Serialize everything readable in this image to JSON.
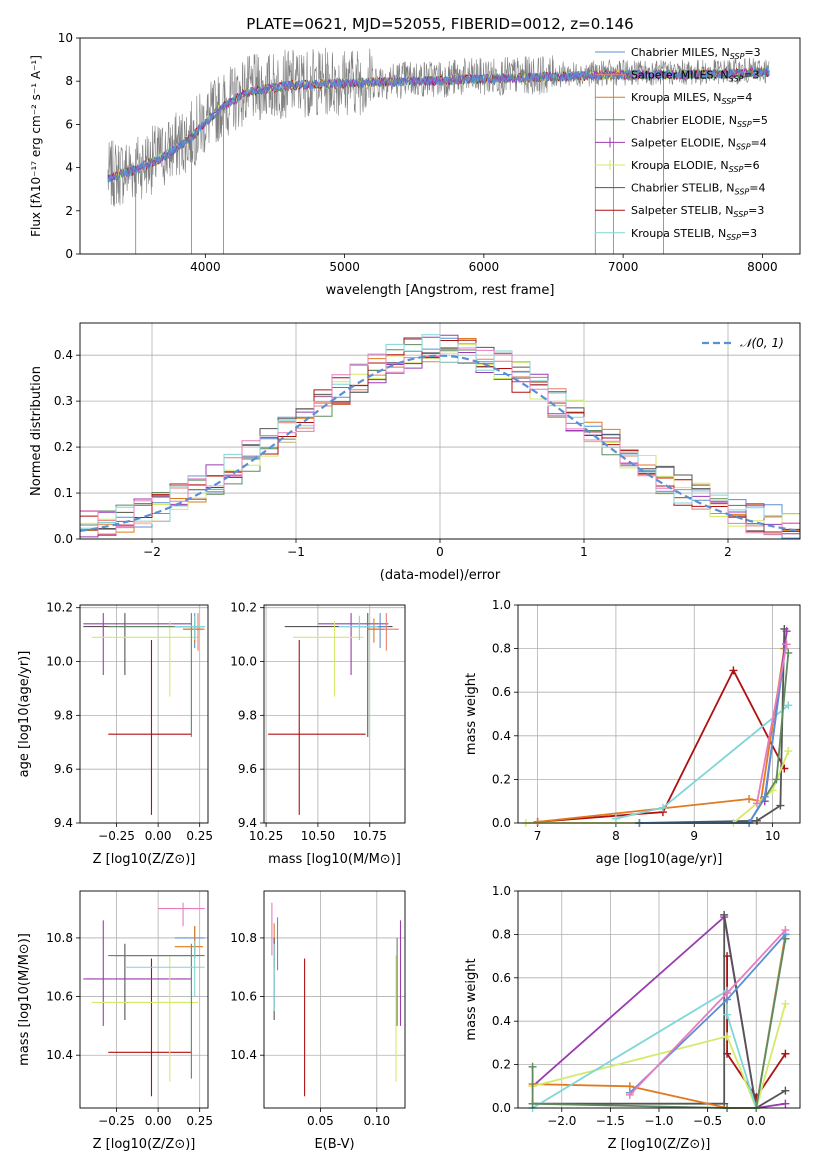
{
  "figure": {
    "title": "PLATE=0621, MJD=52055, FIBERID=0012, z=0.146"
  },
  "colors": {
    "c_miles": "#5b8fd4",
    "s_miles": "#e87f6d",
    "k_miles": "#e07a1f",
    "c_elodie": "#5e8a5e",
    "s_elodie": "#9b3bb0",
    "k_elodie": "#d4ea6a",
    "c_stelib": "#555555",
    "s_stelib": "#b01010",
    "k_stelib": "#7fd6d9",
    "pink": "#e87cbe",
    "gray": "#808080",
    "normal": "#5b8fd4"
  },
  "chart_data": [
    {
      "id": "spectrum",
      "type": "line",
      "xlabel": "wavelength [Angstrom, rest frame]",
      "ylabel": "Flux [f_λ10^-17 erg cm^-2 s^-1 A^-1]",
      "xlim": [
        3100,
        8270
      ],
      "ylim": [
        0,
        10
      ],
      "xticks": [
        4000,
        5000,
        6000,
        7000,
        8000
      ],
      "yticks": [
        0,
        2,
        4,
        6,
        8,
        10
      ],
      "legend_position": "top-right",
      "data_color": "gray",
      "continuum": {
        "x": [
          3300,
          3500,
          3700,
          3900,
          4100,
          4300,
          4600,
          5000,
          5500,
          6000,
          6500,
          7000,
          7500,
          8000
        ],
        "y": [
          3.6,
          4.0,
          4.6,
          5.5,
          6.8,
          7.6,
          7.9,
          8.0,
          8.1,
          8.2,
          8.3,
          8.4,
          8.4,
          8.5
        ]
      },
      "dips": [
        {
          "x": 3500,
          "y": 0
        },
        {
          "x": 3900,
          "y": 0
        },
        {
          "x": 4130,
          "y": 0
        },
        {
          "x": 6800,
          "y": 0
        },
        {
          "x": 6930,
          "y": 0
        },
        {
          "x": 7290,
          "y": 0
        }
      ],
      "series": [
        {
          "name": "Chabrier MILES, N_SSP=3",
          "color": "c_miles",
          "marker": "none"
        },
        {
          "name": "Salpeter MILES, N_SSP=3",
          "color": "s_miles",
          "marker": "none"
        },
        {
          "name": "Kroupa MILES, N_SSP=4",
          "color": "k_miles",
          "marker": "none"
        },
        {
          "name": "Chabrier ELODIE, N_SSP=5",
          "color": "c_elodie",
          "marker": "none"
        },
        {
          "name": "Salpeter ELODIE, N_SSP=4",
          "color": "s_elodie",
          "marker": "+"
        },
        {
          "name": "Kroupa ELODIE, N_SSP=6",
          "color": "k_elodie",
          "marker": "+"
        },
        {
          "name": "Chabrier STELIB, N_SSP=4",
          "color": "c_stelib",
          "marker": "none"
        },
        {
          "name": "Salpeter STELIB, N_SSP=3",
          "color": "s_stelib",
          "marker": "none"
        },
        {
          "name": "Kroupa STELIB, N_SSP=3",
          "color": "k_stelib",
          "marker": "none"
        }
      ]
    },
    {
      "id": "residuals",
      "type": "histogram",
      "xlabel": "(data-model)/error",
      "ylabel": "Normed distribution",
      "xlim": [
        -2.5,
        2.5
      ],
      "ylim": [
        0,
        0.47
      ],
      "xticks": [
        -2,
        -1,
        0,
        1,
        2
      ],
      "yticks": [
        0.0,
        0.1,
        0.2,
        0.3,
        0.4
      ],
      "grid": true,
      "legend_position": "top-right",
      "normal_label": "𝒩(0, 1)",
      "bin_edges_range": [
        -2.5,
        2.5
      ],
      "n_bins": 40,
      "series_colors": [
        "c_miles",
        "s_miles",
        "k_miles",
        "c_elodie",
        "s_elodie",
        "k_elodie",
        "c_stelib",
        "s_stelib",
        "k_stelib",
        "pink"
      ]
    },
    {
      "id": "age_vs_Z",
      "type": "errorbar",
      "xlabel": "Z [log10(Z/Z⊙)]",
      "ylabel": "age  [log10(age/yr)]",
      "xlim": [
        -0.47,
        0.3
      ],
      "ylim": [
        9.4,
        10.21
      ],
      "xticks": [
        -0.25,
        0.0,
        0.25
      ],
      "yticks": [
        9.4,
        9.6,
        9.8,
        10.0,
        10.2
      ],
      "grid": true,
      "points": [
        {
          "c": "s_stelib",
          "x": -0.04,
          "y": 9.73,
          "xe": [
            -0.3,
            0.2
          ],
          "ye": [
            9.43,
            10.08
          ]
        },
        {
          "c": "c_stelib",
          "x": -0.2,
          "y": 10.13,
          "xe": [
            -0.45,
            0.24
          ],
          "ye": [
            9.95,
            10.18
          ]
        },
        {
          "c": "s_elodie",
          "x": -0.33,
          "y": 10.14,
          "xe": [
            -0.45,
            0.2
          ],
          "ye": [
            9.95,
            10.18
          ]
        },
        {
          "c": "k_elodie",
          "x": 0.07,
          "y": 10.09,
          "xe": [
            -0.4,
            0.24
          ],
          "ye": [
            9.87,
            10.15
          ]
        },
        {
          "c": "c_elodie",
          "x": 0.2,
          "y": 10.13,
          "xe": [
            -0.3,
            0.28
          ],
          "ye": [
            9.72,
            10.18
          ]
        },
        {
          "c": "c_miles",
          "x": 0.22,
          "y": 10.13,
          "xe": [
            0.1,
            0.28
          ],
          "ye": [
            10.05,
            10.18
          ]
        },
        {
          "c": "s_miles",
          "x": 0.24,
          "y": 10.12,
          "xe": [
            0.15,
            0.28
          ],
          "ye": [
            10.04,
            10.18
          ]
        },
        {
          "c": "k_miles",
          "x": 0.22,
          "y": 10.12,
          "xe": [
            0.15,
            0.27
          ],
          "ye": [
            10.07,
            10.16
          ]
        },
        {
          "c": "k_stelib",
          "x": 0.22,
          "y": 10.13,
          "xe": [
            0.1,
            0.28
          ],
          "ye": [
            10.08,
            10.17
          ]
        }
      ]
    },
    {
      "id": "age_vs_mass",
      "type": "errorbar",
      "xlabel": "mass [log10(M/M⊙)]",
      "ylabel": "",
      "xlim": [
        10.24,
        10.92
      ],
      "ylim": [
        9.4,
        10.21
      ],
      "xticks": [
        10.25,
        10.5,
        10.75
      ],
      "yticks": [
        9.4,
        9.6,
        9.8,
        10.0,
        10.2
      ],
      "grid": true,
      "points": [
        {
          "c": "s_stelib",
          "x": 10.41,
          "y": 9.73,
          "xe": [
            10.26,
            10.73
          ],
          "ye": [
            9.43,
            10.08
          ]
        },
        {
          "c": "c_stelib",
          "x": 10.74,
          "y": 10.13,
          "xe": [
            10.34,
            10.86
          ],
          "ye": [
            9.72,
            10.18
          ]
        },
        {
          "c": "s_elodie",
          "x": 10.66,
          "y": 10.14,
          "xe": [
            10.5,
            10.84
          ],
          "ye": [
            9.95,
            10.18
          ]
        },
        {
          "c": "k_elodie",
          "x": 10.58,
          "y": 10.09,
          "xe": [
            10.38,
            10.72
          ],
          "ye": [
            9.87,
            10.15
          ]
        },
        {
          "c": "c_elodie",
          "x": 10.74,
          "y": 10.13,
          "xe": [
            10.7,
            10.84
          ],
          "ye": [
            9.72,
            10.18
          ]
        },
        {
          "c": "c_miles",
          "x": 10.8,
          "y": 10.13,
          "xe": [
            10.74,
            10.84
          ],
          "ye": [
            10.05,
            10.18
          ]
        },
        {
          "c": "s_miles",
          "x": 10.83,
          "y": 10.12,
          "xe": [
            10.74,
            10.89
          ],
          "ye": [
            10.04,
            10.18
          ]
        },
        {
          "c": "k_miles",
          "x": 10.77,
          "y": 10.12,
          "xe": [
            10.74,
            10.82
          ],
          "ye": [
            10.07,
            10.16
          ]
        },
        {
          "c": "k_stelib",
          "x": 10.7,
          "y": 10.13,
          "xe": [
            10.6,
            10.79
          ],
          "ye": [
            10.08,
            10.17
          ]
        }
      ]
    },
    {
      "id": "mass_vs_Z",
      "type": "errorbar",
      "xlabel": "Z [log10(Z/Z⊙)]",
      "ylabel": "mass [log10(M/M⊙)]",
      "xlim": [
        -0.47,
        0.3
      ],
      "ylim": [
        10.22,
        10.96
      ],
      "xticks": [
        -0.25,
        0.0,
        0.25
      ],
      "yticks": [
        10.4,
        10.6,
        10.8
      ],
      "grid": true,
      "points": [
        {
          "c": "s_stelib",
          "x": -0.04,
          "y": 10.41,
          "xe": [
            -0.3,
            0.2
          ],
          "ye": [
            10.26,
            10.73
          ]
        },
        {
          "c": "c_stelib",
          "x": -0.2,
          "y": 10.74,
          "xe": [
            -0.26,
            0.24
          ],
          "ye": [
            10.52,
            10.78
          ]
        },
        {
          "c": "s_elodie",
          "x": -0.33,
          "y": 10.66,
          "xe": [
            -0.45,
            0.2
          ],
          "ye": [
            10.5,
            10.86
          ]
        },
        {
          "c": "k_elodie",
          "x": 0.07,
          "y": 10.58,
          "xe": [
            -0.4,
            0.24
          ],
          "ye": [
            10.31,
            10.74
          ]
        },
        {
          "c": "c_elodie",
          "x": 0.2,
          "y": 10.74,
          "xe": [
            -0.3,
            0.28
          ],
          "ye": [
            10.32,
            10.78
          ]
        },
        {
          "c": "c_miles",
          "x": 0.22,
          "y": 10.8,
          "xe": [
            0.1,
            0.28
          ],
          "ye": [
            10.74,
            10.84
          ]
        },
        {
          "c": "pink",
          "x": 0.15,
          "y": 10.9,
          "xe": [
            0.0,
            0.28
          ],
          "ye": [
            10.84,
            10.92
          ]
        },
        {
          "c": "k_miles",
          "x": 0.22,
          "y": 10.77,
          "xe": [
            0.1,
            0.27
          ],
          "ye": [
            10.73,
            10.84
          ]
        },
        {
          "c": "k_stelib",
          "x": 0.22,
          "y": 10.7,
          "xe": [
            -0.2,
            0.28
          ],
          "ye": [
            10.6,
            10.79
          ]
        }
      ]
    },
    {
      "id": "mass_vs_EBV",
      "type": "errorbar",
      "xlabel": "E(B-V)",
      "ylabel": "",
      "xlim": [
        0.0,
        0.125
      ],
      "ylim": [
        10.22,
        10.96
      ],
      "xticks": [
        0.05,
        0.1
      ],
      "yticks": [
        10.4,
        10.6,
        10.8
      ],
      "grid": true,
      "points": [
        {
          "c": "s_stelib",
          "x": 0.036,
          "y": 10.41,
          "ye": [
            10.26,
            10.73
          ]
        },
        {
          "c": "pink",
          "x": 0.007,
          "y": 10.84,
          "ye": [
            10.74,
            10.92
          ]
        },
        {
          "c": "k_miles",
          "x": 0.009,
          "y": 10.77,
          "ye": [
            10.7,
            10.85
          ]
        },
        {
          "c": "c_miles",
          "x": 0.012,
          "y": 10.8,
          "ye": [
            10.69,
            10.87
          ]
        },
        {
          "c": "c_stelib",
          "x": 0.009,
          "y": 10.65,
          "ye": [
            10.52,
            10.8
          ]
        },
        {
          "c": "k_stelib",
          "x": 0.009,
          "y": 10.7,
          "ye": [
            10.55,
            10.78
          ]
        },
        {
          "c": "k_elodie",
          "x": 0.117,
          "y": 10.58,
          "ye": [
            10.31,
            10.74
          ]
        },
        {
          "c": "c_elodie",
          "x": 0.118,
          "y": 10.74,
          "ye": [
            10.5,
            10.8
          ]
        },
        {
          "c": "s_elodie",
          "x": 0.121,
          "y": 10.66,
          "ye": [
            10.5,
            10.86
          ]
        }
      ]
    },
    {
      "id": "weight_vs_age",
      "type": "line",
      "xlabel": "age  [log10(age/yr)]",
      "ylabel": "mass weight",
      "xlim": [
        6.75,
        10.35
      ],
      "ylim": [
        0,
        1.0
      ],
      "xticks": [
        7,
        8,
        9,
        10
      ],
      "yticks": [
        0.0,
        0.2,
        0.4,
        0.6,
        0.8,
        1.0
      ],
      "grid": true,
      "series": [
        {
          "c": "s_stelib",
          "x": [
            7.0,
            8.6,
            9.5,
            10.15
          ],
          "y": [
            0.005,
            0.05,
            0.7,
            0.25
          ]
        },
        {
          "c": "c_stelib",
          "x": [
            8.3,
            9.8,
            10.1,
            10.15
          ],
          "y": [
            0.0,
            0.01,
            0.08,
            0.89
          ]
        },
        {
          "c": "k_miles",
          "x": [
            7.0,
            9.7,
            9.85,
            10.15
          ],
          "y": [
            0.005,
            0.11,
            0.1,
            0.8
          ]
        },
        {
          "c": "k_stelib",
          "x": [
            8.0,
            8.6,
            10.2
          ],
          "y": [
            0.02,
            0.07,
            0.54
          ]
        },
        {
          "c": "s_elodie",
          "x": [
            9.9,
            10.18
          ],
          "y": [
            0.1,
            0.88
          ]
        },
        {
          "c": "k_elodie",
          "x": [
            6.85,
            9.5,
            10.0,
            10.2
          ],
          "y": [
            0.0,
            0.0,
            0.15,
            0.33
          ]
        },
        {
          "c": "c_elodie",
          "x": [
            8.3,
            9.7,
            10.05,
            10.2
          ],
          "y": [
            0.0,
            0.0,
            0.2,
            0.78
          ]
        },
        {
          "c": "c_miles",
          "x": [
            8.3,
            9.7,
            9.9,
            10.17
          ],
          "y": [
            0.0,
            0.0,
            0.12,
            0.82
          ]
        },
        {
          "c": "pink",
          "x": [
            9.8,
            10.18
          ],
          "y": [
            0.09,
            0.82
          ]
        }
      ]
    },
    {
      "id": "weight_vs_Z",
      "type": "line",
      "xlabel": "Z [log10(Z/Z⊙)]",
      "ylabel": "mass weight",
      "xlim": [
        -2.45,
        0.45
      ],
      "ylim": [
        0,
        1.0
      ],
      "xticks": [
        -2.0,
        -1.5,
        -1.0,
        -0.5,
        0.0
      ],
      "yticks": [
        0.0,
        0.2,
        0.4,
        0.6,
        0.8,
        1.0
      ],
      "grid": true,
      "series": [
        {
          "c": "s_elodie",
          "x": [
            -2.3,
            -0.33,
            0.0,
            0.3
          ],
          "y": [
            0.1,
            0.88,
            0.0,
            0.02
          ]
        },
        {
          "c": "s_stelib",
          "x": [
            -0.3,
            -0.3,
            0.0,
            0.3
          ],
          "y": [
            0.7,
            0.25,
            0.05,
            0.25
          ]
        },
        {
          "c": "c_stelib",
          "x": [
            -2.3,
            -0.33,
            -0.33,
            0.0,
            0.3
          ],
          "y": [
            0.02,
            0.02,
            0.89,
            0.0,
            0.08
          ]
        },
        {
          "c": "k_miles",
          "x": [
            -2.3,
            -1.3,
            -0.3,
            0.0,
            0.3
          ],
          "y": [
            0.11,
            0.1,
            0.0,
            0.0,
            0.8
          ]
        },
        {
          "c": "k_elodie",
          "x": [
            -2.3,
            -0.3,
            0.0,
            0.3
          ],
          "y": [
            0.1,
            0.33,
            0.0,
            0.48
          ]
        },
        {
          "c": "k_stelib",
          "x": [
            -2.3,
            -0.3,
            -0.3,
            0.0,
            0.3
          ],
          "y": [
            0.0,
            0.54,
            0.43,
            0.0,
            0.78
          ]
        },
        {
          "c": "c_elodie",
          "x": [
            -2.3,
            -2.3,
            -0.3,
            0.0,
            0.3
          ],
          "y": [
            0.19,
            0.02,
            0.0,
            0.0,
            0.78
          ]
        },
        {
          "c": "c_miles",
          "x": [
            -1.3,
            -0.3,
            0.3
          ],
          "y": [
            0.07,
            0.5,
            0.8
          ]
        },
        {
          "c": "pink",
          "x": [
            -1.3,
            -0.3,
            0.3
          ],
          "y": [
            0.06,
            0.53,
            0.82
          ]
        }
      ]
    }
  ]
}
